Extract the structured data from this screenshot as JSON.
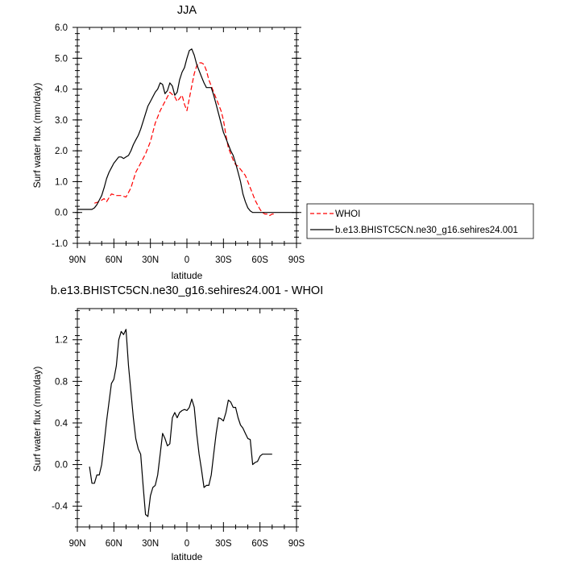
{
  "chart_data": [
    {
      "type": "line",
      "title": "JJA",
      "xlabel": "latitude",
      "ylabel": "Surf water flux (mm/day)",
      "xlim": [
        90,
        -90
      ],
      "ylim": [
        -1.0,
        6.0
      ],
      "x_ticks": [
        90,
        60,
        30,
        0,
        -30,
        -60,
        -90
      ],
      "x_tick_labels": [
        "90N",
        "60N",
        "30N",
        "0",
        "30S",
        "60S",
        "90S"
      ],
      "y_ticks": [
        -1.0,
        0.0,
        1.0,
        2.0,
        3.0,
        4.0,
        5.0,
        6.0
      ],
      "y_tick_labels": [
        "-1.0",
        "0.0",
        "1.0",
        "2.0",
        "3.0",
        "4.0",
        "5.0",
        "6.0"
      ],
      "legend_position": "right",
      "series": [
        {
          "name": "WHOI",
          "color": "#ff0000",
          "dash": true,
          "x": [
            76,
            72,
            68,
            66,
            62,
            58,
            54,
            50,
            46,
            42,
            38,
            34,
            30,
            26,
            22,
            18,
            14,
            10,
            8,
            4,
            2,
            0,
            -2,
            -4,
            -6,
            -8,
            -10,
            -12,
            -14,
            -16,
            -18,
            -20,
            -22,
            -24,
            -26,
            -28,
            -30,
            -32,
            -34,
            -36,
            -38,
            -40,
            -42,
            -44,
            -46,
            -48,
            -50,
            -52,
            -54,
            -56,
            -58,
            -60,
            -62,
            -64,
            -66,
            -68,
            -70,
            -72
          ],
          "y": [
            0.3,
            0.35,
            0.45,
            0.35,
            0.6,
            0.55,
            0.55,
            0.5,
            0.8,
            1.3,
            1.6,
            1.9,
            2.3,
            2.9,
            3.3,
            3.6,
            3.9,
            3.75,
            3.6,
            3.8,
            3.5,
            3.3,
            3.7,
            4.1,
            4.5,
            4.75,
            4.85,
            4.85,
            4.8,
            4.6,
            4.3,
            4.1,
            3.9,
            3.7,
            3.5,
            3.3,
            3.0,
            2.5,
            2.1,
            1.9,
            1.7,
            1.55,
            1.5,
            1.4,
            1.3,
            1.2,
            1.0,
            0.8,
            0.6,
            0.4,
            0.25,
            0.1,
            0.0,
            -0.05,
            -0.05,
            -0.1,
            -0.05,
            -0.05
          ]
        },
        {
          "name": "b.e13.BHISTC5CN.ne30_g16.sehires24.001",
          "color": "#000000",
          "dash": false,
          "x": [
            90,
            86,
            82,
            78,
            76,
            74,
            72,
            70,
            68,
            66,
            64,
            62,
            60,
            58,
            56,
            54,
            52,
            50,
            48,
            46,
            44,
            42,
            40,
            38,
            36,
            34,
            32,
            30,
            28,
            26,
            24,
            22,
            20,
            18,
            16,
            14,
            12,
            10,
            8,
            6,
            4,
            2,
            0,
            -2,
            -4,
            -6,
            -8,
            -10,
            -12,
            -14,
            -16,
            -18,
            -20,
            -22,
            -24,
            -26,
            -28,
            -30,
            -32,
            -34,
            -36,
            -38,
            -40,
            -42,
            -44,
            -46,
            -48,
            -50,
            -52,
            -54,
            -56,
            -58,
            -60,
            -62,
            -64,
            -66,
            -68,
            -70,
            -72,
            -74,
            -76,
            -78,
            -80,
            -84,
            -88
          ],
          "y": [
            0.1,
            0.1,
            0.1,
            0.1,
            0.15,
            0.25,
            0.4,
            0.55,
            0.8,
            1.1,
            1.3,
            1.45,
            1.6,
            1.7,
            1.8,
            1.8,
            1.75,
            1.8,
            1.85,
            2.0,
            2.2,
            2.35,
            2.5,
            2.7,
            2.95,
            3.2,
            3.45,
            3.6,
            3.75,
            3.9,
            4.0,
            4.2,
            4.15,
            3.85,
            3.95,
            4.2,
            4.1,
            3.8,
            3.9,
            4.3,
            4.55,
            4.7,
            5.0,
            5.25,
            5.3,
            5.1,
            4.8,
            4.6,
            4.4,
            4.2,
            4.05,
            4.05,
            4.05,
            3.8,
            3.5,
            3.2,
            2.9,
            2.6,
            2.4,
            2.2,
            2.0,
            1.85,
            1.6,
            1.3,
            1.0,
            0.6,
            0.35,
            0.15,
            0.05,
            0.0,
            0.0,
            0.0,
            0.0,
            0.0,
            0.0,
            0.0,
            0.0,
            0.0,
            0.0,
            0.0,
            0.0,
            0.0,
            0.0,
            0.0,
            0.0
          ],
          "note_visible_range": "ends near 90S at 0.0"
        }
      ]
    },
    {
      "type": "line",
      "title": "b.e13.BHISTC5CN.ne30_g16.sehires24.001 - WHOI",
      "xlabel": "latitude",
      "ylabel": "Surf water flux (mm/day)",
      "xlim": [
        90,
        -90
      ],
      "ylim": [
        -0.6,
        1.5
      ],
      "x_ticks": [
        90,
        60,
        30,
        0,
        -30,
        -60,
        -90
      ],
      "x_tick_labels": [
        "90N",
        "60N",
        "30N",
        "0",
        "30S",
        "60S",
        "90S"
      ],
      "y_ticks": [
        -0.4,
        0.0,
        0.4,
        0.8,
        1.2
      ],
      "y_tick_labels": [
        "-0.4",
        "0.0",
        "0.4",
        "0.8",
        "1.2"
      ],
      "series": [
        {
          "color": "#000000",
          "dash": false,
          "x": [
            80,
            78,
            76,
            74,
            72,
            70,
            68,
            66,
            64,
            62,
            60,
            58,
            56,
            54,
            52,
            50,
            48,
            46,
            44,
            42,
            40,
            38,
            36,
            34,
            32,
            30,
            28,
            26,
            24,
            22,
            20,
            18,
            16,
            14,
            12,
            10,
            8,
            6,
            4,
            2,
            0,
            -2,
            -4,
            -6,
            -8,
            -10,
            -12,
            -14,
            -16,
            -18,
            -20,
            -22,
            -24,
            -26,
            -28,
            -30,
            -32,
            -34,
            -36,
            -38,
            -40,
            -42,
            -44,
            -46,
            -48,
            -50,
            -52,
            -54,
            -56,
            -58,
            -60,
            -62,
            -64,
            -66,
            -68,
            -70
          ],
          "y": [
            -0.02,
            -0.18,
            -0.18,
            -0.1,
            -0.1,
            0.0,
            0.2,
            0.42,
            0.6,
            0.78,
            0.82,
            0.95,
            1.2,
            1.28,
            1.25,
            1.3,
            0.95,
            0.7,
            0.45,
            0.25,
            0.15,
            0.1,
            -0.2,
            -0.48,
            -0.5,
            -0.3,
            -0.22,
            -0.2,
            -0.1,
            0.1,
            0.3,
            0.25,
            0.18,
            0.2,
            0.45,
            0.5,
            0.45,
            0.5,
            0.52,
            0.53,
            0.52,
            0.55,
            0.63,
            0.55,
            0.3,
            0.1,
            -0.05,
            -0.22,
            -0.2,
            -0.2,
            -0.1,
            0.1,
            0.3,
            0.45,
            0.44,
            0.42,
            0.5,
            0.62,
            0.6,
            0.55,
            0.55,
            0.45,
            0.38,
            0.35,
            0.3,
            0.25,
            0.24,
            0.0,
            0.02,
            0.03,
            0.08,
            0.1,
            0.1,
            0.1,
            0.1,
            0.1
          ]
        }
      ]
    }
  ]
}
